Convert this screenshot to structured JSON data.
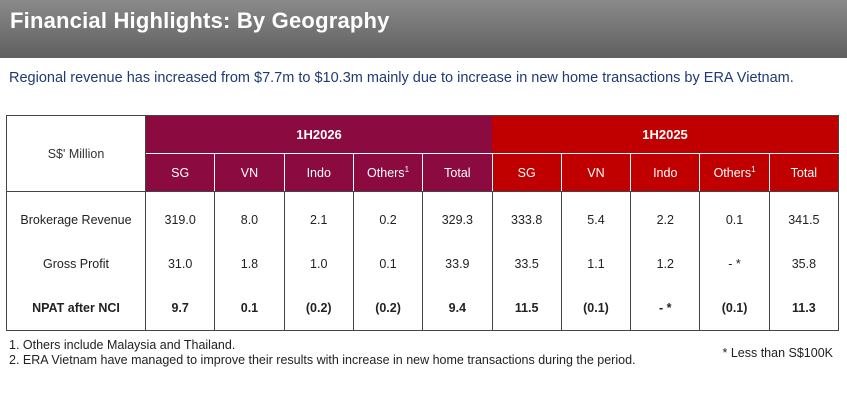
{
  "header": {
    "title": "Financial Highlights: By Geography"
  },
  "subtitle": "Regional revenue has increased from $7.7m to $10.3m mainly due to increase in new home transactions by ERA Vietnam.",
  "table": {
    "unit_label": "S$' Million",
    "periods": [
      "1H2026",
      "1H2025"
    ],
    "columns": [
      "SG",
      "VN",
      "Indo",
      "Others",
      "Total"
    ],
    "others_footnote_mark": "1",
    "period_colors": {
      "1H2026": "#8b0a3f",
      "1H2025": "#c00000"
    },
    "rows": [
      {
        "label": "Brokerage Revenue",
        "values": [
          "319.0",
          "8.0",
          "2.1",
          "0.2",
          "329.3",
          "333.8",
          "5.4",
          "2.2",
          "0.1",
          "341.5"
        ],
        "bold": false
      },
      {
        "label": "Gross Profit",
        "values": [
          "31.0",
          "1.8",
          "1.0",
          "0.1",
          "33.9",
          "33.5",
          "1.1",
          "1.2",
          "- *",
          "35.8"
        ],
        "bold": false
      },
      {
        "label": "NPAT after NCI",
        "values": [
          "9.7",
          "0.1",
          "(0.2)",
          "(0.2)",
          "9.4",
          "11.5",
          "(0.1)",
          "- *",
          "(0.1)",
          "11.3"
        ],
        "bold": true
      }
    ]
  },
  "footnotes": [
    "1.  Others include Malaysia and Thailand.",
    "2.  ERA Vietnam have managed to improve their results with increase in new home transactions during the period."
  ],
  "asterisk_note": "* Less than S$100K"
}
